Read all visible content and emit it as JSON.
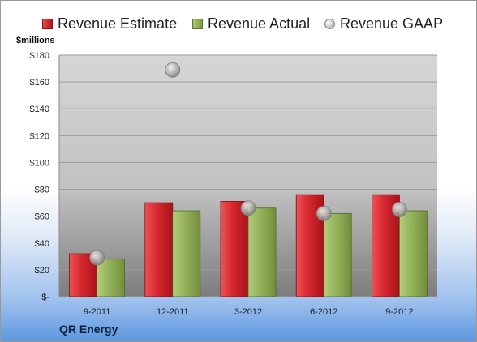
{
  "legend": {
    "estimate": "Revenue Estimate",
    "actual": "Revenue Actual",
    "gaap": "Revenue GAAP"
  },
  "unit_label": "$millions",
  "company": "QR Energy",
  "colors": {
    "estimate": "#c8222a",
    "actual": "#8fae55",
    "gaap": "#c0c0c0",
    "plot_bg": "#c9c9c9"
  },
  "chart_data": {
    "type": "bar",
    "categories": [
      "9-2011",
      "12-2011",
      "3-2012",
      "6-2012",
      "9-2012"
    ],
    "series": [
      {
        "name": "Revenue Estimate",
        "values": [
          32,
          70,
          71,
          76,
          76
        ]
      },
      {
        "name": "Revenue Actual",
        "values": [
          28,
          64,
          66,
          62,
          64
        ]
      },
      {
        "name": "Revenue GAAP",
        "values": [
          29,
          169,
          66,
          62,
          65
        ]
      }
    ],
    "ylabel": "$millions",
    "ylim": [
      0,
      180
    ],
    "yticks": [
      0,
      20,
      40,
      60,
      80,
      100,
      120,
      140,
      160,
      180
    ],
    "ytick_labels": [
      "$-",
      "$20",
      "$40",
      "$60",
      "$80",
      "$100",
      "$120",
      "$140",
      "$160",
      "$180"
    ],
    "grid": true,
    "legend_position": "top"
  }
}
